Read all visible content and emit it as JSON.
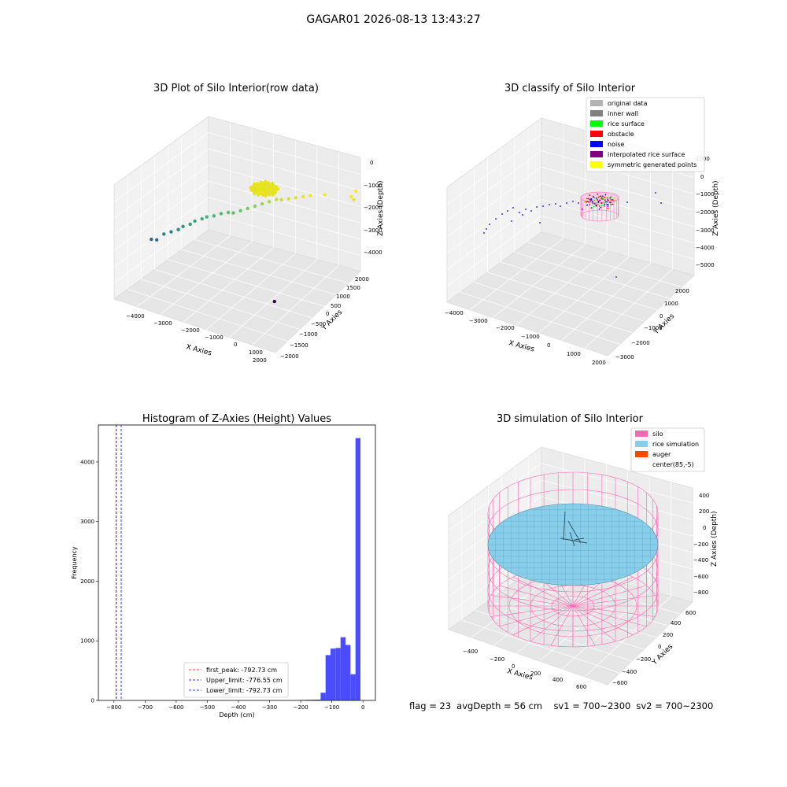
{
  "suptitle": "GAGAR01 2026-08-13 13:43:27",
  "status": {
    "flag": "flag = 23",
    "avgDepth": "avgDepth = 56 cm",
    "sv1": "sv1 = 700~2300",
    "sv2": "sv2 = 700~2300"
  },
  "colors": {
    "original_data": "#b3b3b3",
    "inner_wall": "#808080",
    "rice_surface": "#00ff00",
    "obstacle": "#ff0000",
    "noise": "#0000ff",
    "interpolated_rice_surface": "#800080",
    "symmetric_generated_points": "#ffff00",
    "silo": "#ff69b4",
    "rice_simulation": "#87ceeb",
    "auger": "#ff4500",
    "histogram": "#0000ff"
  },
  "chart_data": [
    {
      "type": "scatter3d",
      "title": "3D Plot of Silo Interior(row data)",
      "xlabel": "X Axies",
      "ylabel": "Y Axies",
      "zlabel": "Z Axies (Depth)",
      "x_ticks": [
        "−4000",
        "−3000",
        "−2000",
        "−1000",
        "0",
        "1000",
        "2000"
      ],
      "y_ticks": [
        "−2000",
        "−1500",
        "−1000",
        "−500",
        "0",
        "500",
        "1000",
        "1500",
        "2000"
      ],
      "z_ticks": [
        "0",
        "−1000",
        "−2000",
        "−3000",
        "−4000"
      ],
      "colormap": "viridis by depth",
      "points": [
        [
          -4000,
          -700,
          -2900
        ],
        [
          -3700,
          -800,
          -2750
        ],
        [
          -3500,
          -700,
          -2500
        ],
        [
          -3300,
          -600,
          -2400
        ],
        [
          -3100,
          -500,
          -2300
        ],
        [
          -3000,
          -400,
          -2200
        ],
        [
          -2800,
          -300,
          -2100
        ],
        [
          -2700,
          -200,
          -2000
        ],
        [
          -2500,
          -100,
          -1900
        ],
        [
          -2400,
          0,
          -1850
        ],
        [
          -2200,
          100,
          -1800
        ],
        [
          -2000,
          200,
          -1700
        ],
        [
          -1800,
          300,
          -1650
        ],
        [
          -1600,
          300,
          -1600
        ],
        [
          -1400,
          400,
          -1500
        ],
        [
          -1200,
          500,
          -1400
        ],
        [
          -1000,
          600,
          -1300
        ],
        [
          -800,
          700,
          -1200
        ],
        [
          -600,
          800,
          -1100
        ],
        [
          -400,
          900,
          -1000
        ],
        [
          -200,
          900,
          -950
        ],
        [
          0,
          1000,
          -900
        ],
        [
          200,
          1100,
          -850
        ],
        [
          400,
          1200,
          -800
        ],
        [
          600,
          1300,
          -750
        ],
        [
          1000,
          1500,
          -700
        ],
        [
          1800,
          1800,
          -700
        ],
        [
          1900,
          1800,
          -800
        ],
        [
          1900,
          1900,
          -500
        ],
        [
          800,
          -600,
          -3900
        ]
      ]
    },
    {
      "type": "scatter3d",
      "title": "3D classify of Silo Interior",
      "xlabel": "X Axies",
      "ylabel": "Y Axies",
      "zlabel": "Z Axies (Depth)",
      "x_ticks": [
        "−4000",
        "−3000",
        "−2000",
        "−1000",
        "0",
        "1000",
        "2000"
      ],
      "y_ticks": [
        "−3000",
        "−2000",
        "−1000",
        "0",
        "1000",
        "2000"
      ],
      "z_ticks": [
        "1000",
        "0",
        "−1000",
        "−2000",
        "−3000",
        "−4000",
        "−5000"
      ],
      "legend_position": "top-right",
      "legend": [
        {
          "label": "original data",
          "color": "#b3b3b3"
        },
        {
          "label": "inner wall",
          "color": "#808080"
        },
        {
          "label": "rice surface",
          "color": "#00ff00"
        },
        {
          "label": "obstacle",
          "color": "#ff0000"
        },
        {
          "label": "noise",
          "color": "#0000ff"
        },
        {
          "label": "interpolated rice surface",
          "color": "#800080"
        },
        {
          "label": "symmetric generated points",
          "color": "#ffff00"
        }
      ]
    },
    {
      "type": "bar",
      "title": "Histogram of Z-Axies (Height) Values",
      "xlabel": "Depth (cm)",
      "ylabel": "Frequency",
      "xlim": [
        -850,
        40
      ],
      "ylim": [
        0,
        4620
      ],
      "x_ticks": [
        -800,
        -700,
        -600,
        -500,
        -400,
        -300,
        -200,
        -100,
        0
      ],
      "y_ticks": [
        0,
        1000,
        2000,
        3000,
        4000
      ],
      "bin_width": 16,
      "bins": [
        {
          "x0": -200,
          "x1": -184,
          "count": 8
        },
        {
          "x0": -184,
          "x1": -168,
          "count": 10
        },
        {
          "x0": -168,
          "x1": -152,
          "count": 12
        },
        {
          "x0": -152,
          "x1": -136,
          "count": 15
        },
        {
          "x0": -136,
          "x1": -120,
          "count": 130
        },
        {
          "x0": -120,
          "x1": -104,
          "count": 760
        },
        {
          "x0": -104,
          "x1": -88,
          "count": 870
        },
        {
          "x0": -88,
          "x1": -72,
          "count": 880
        },
        {
          "x0": -72,
          "x1": -56,
          "count": 1060
        },
        {
          "x0": -56,
          "x1": -40,
          "count": 930
        },
        {
          "x0": -40,
          "x1": -24,
          "count": 440
        },
        {
          "x0": -24,
          "x1": -8,
          "count": 4400
        }
      ],
      "lines": [
        {
          "name": "first_peak: -792.73 cm",
          "x": -792.73,
          "color": "#ff0000"
        },
        {
          "name": "Upper_limit: -776.55 cm",
          "x": -776.55,
          "color": "#0000ff"
        },
        {
          "name": "Lower_limit: -792.73 cm",
          "x": -792.73,
          "color": "#0000ff"
        }
      ],
      "legend_position": "lower-center"
    },
    {
      "type": "surface3d",
      "title": "3D simulation of Silo Interior",
      "xlabel": "X Axies",
      "ylabel": "Y Axies",
      "zlabel": "Z Axies (Depth)",
      "x_ticks": [
        "−400",
        "−200",
        "0",
        "200",
        "400",
        "600"
      ],
      "y_ticks": [
        "−600",
        "−400",
        "−200",
        "0",
        "200",
        "400",
        "600"
      ],
      "z_ticks": [
        "400",
        "200",
        "0",
        "−200",
        "−400",
        "−600",
        "−800"
      ],
      "legend_position": "top-right",
      "legend": [
        {
          "label": "silo",
          "color": "#ff69b4"
        },
        {
          "label": "rice simulation",
          "color": "#87ceeb"
        },
        {
          "label": "auger",
          "color": "#ff4500"
        },
        {
          "label": "center(85,-5)",
          "color": ""
        }
      ]
    }
  ]
}
